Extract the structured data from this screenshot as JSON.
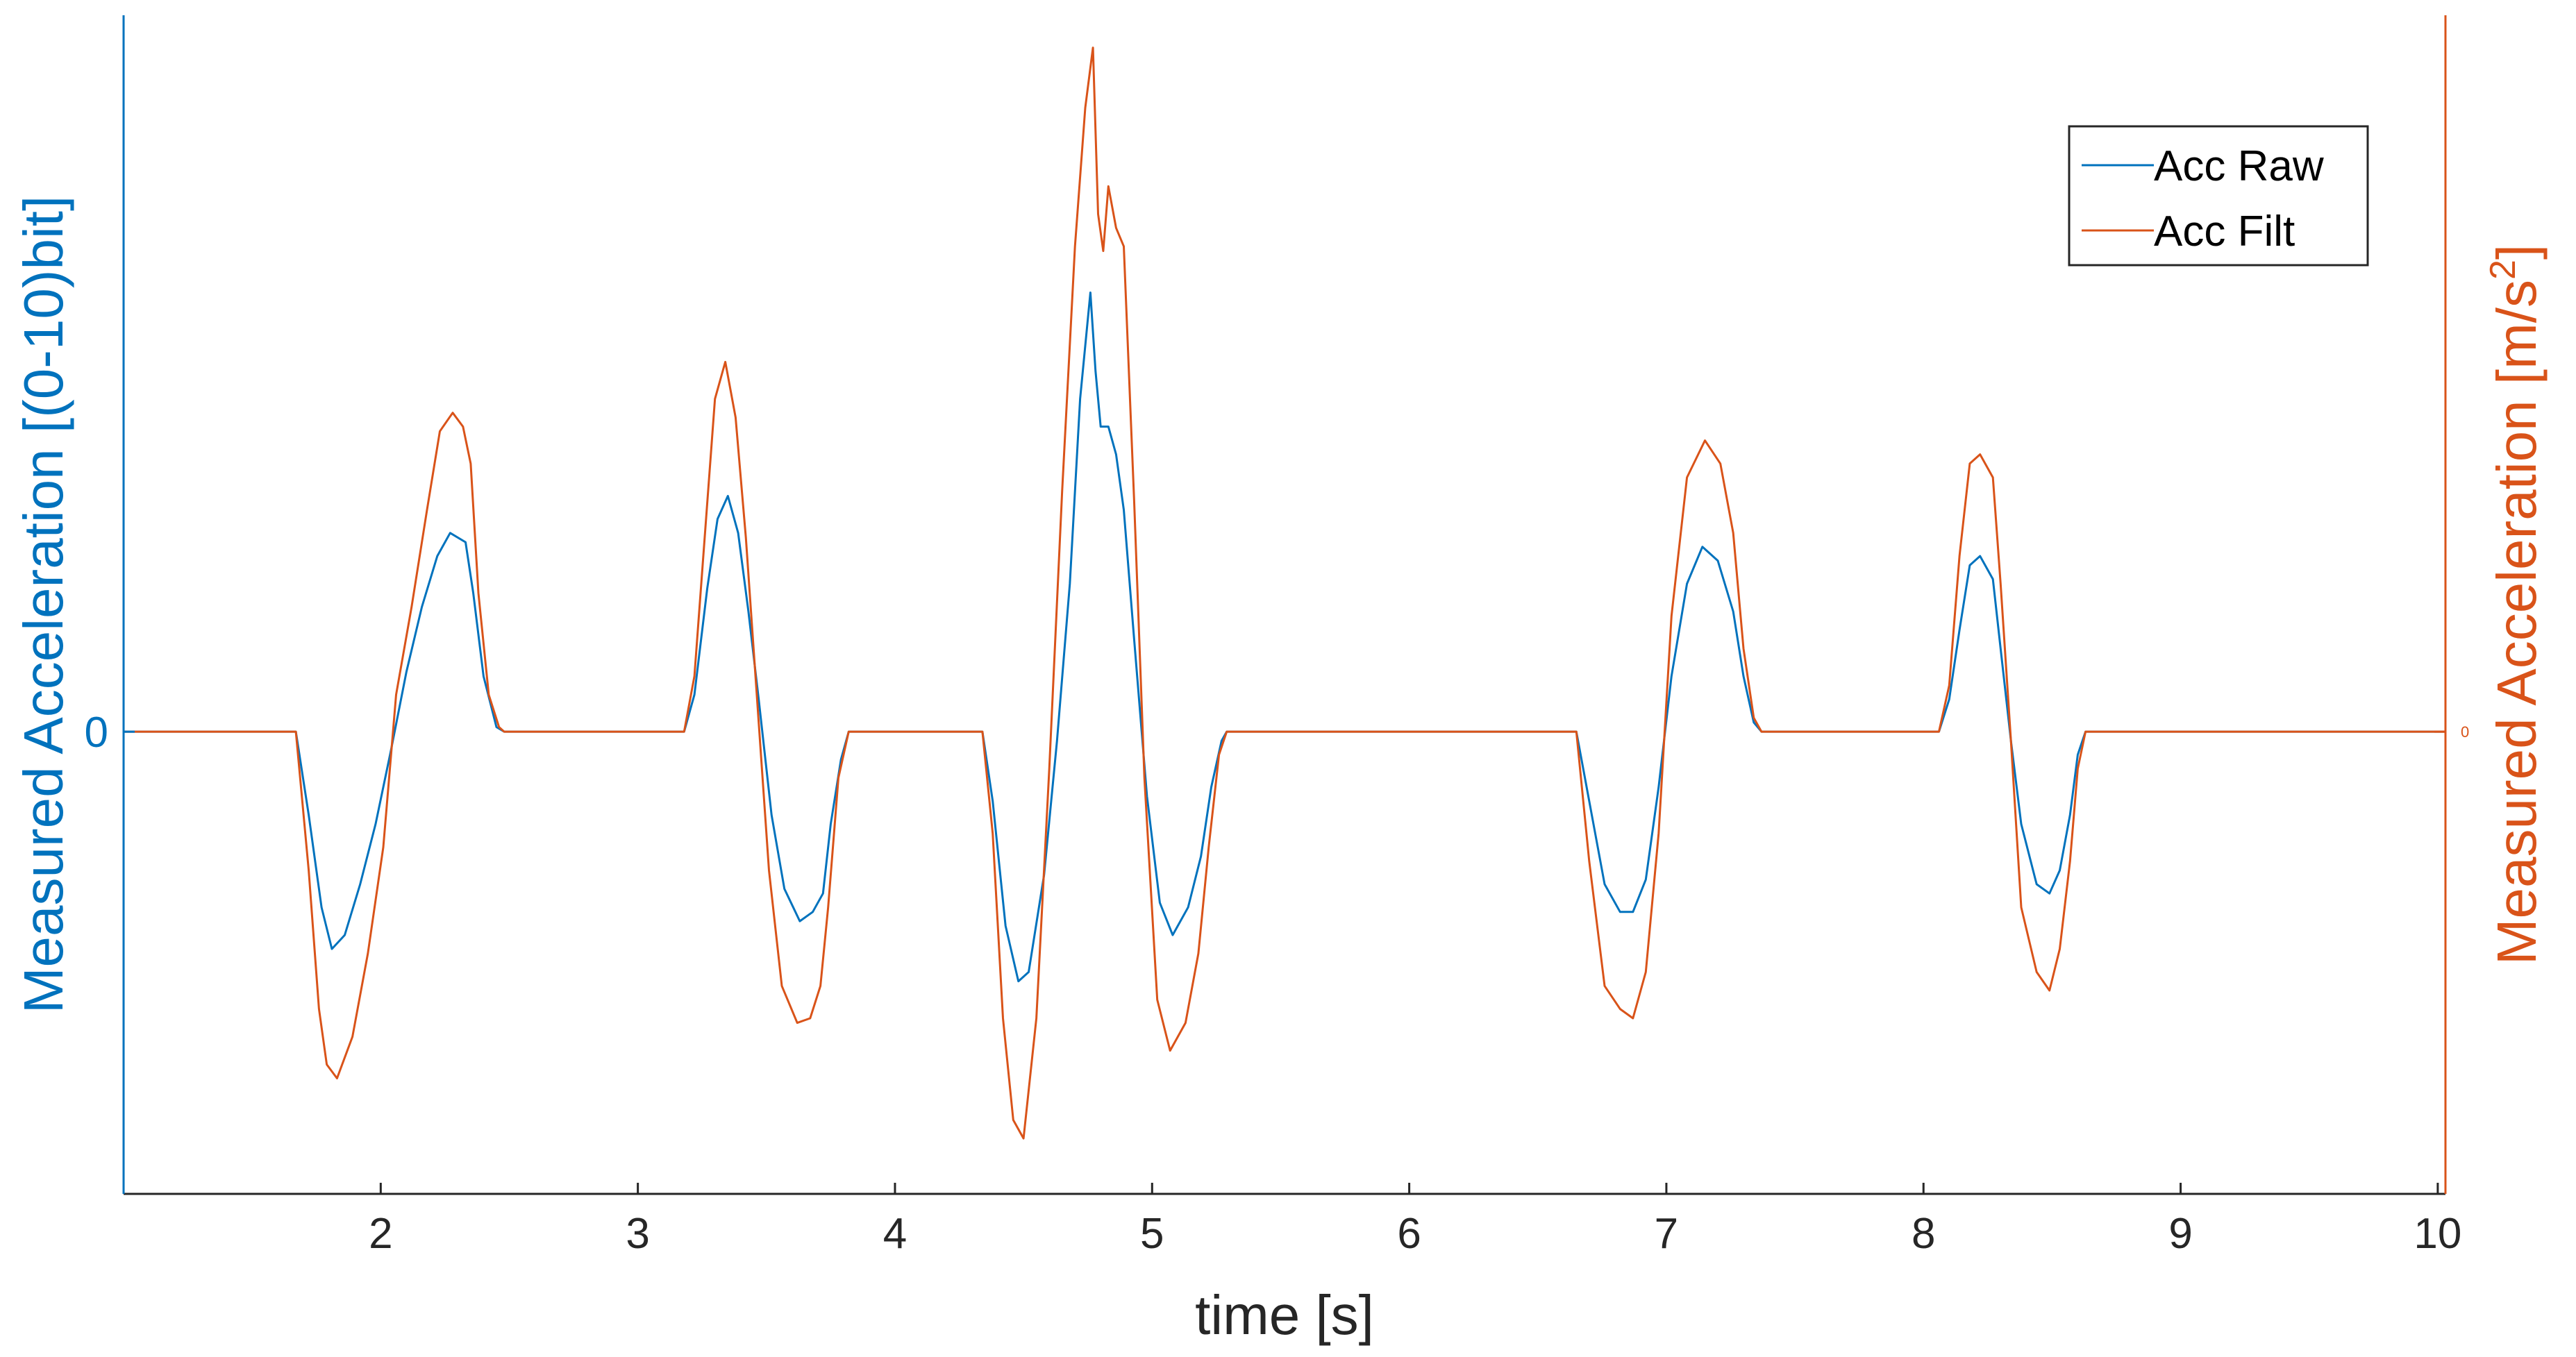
{
  "chart_data": {
    "type": "line",
    "xlabel": "time [s]",
    "ylabel_left": "Measured Acceleration [(0-10)bit]",
    "ylabel_right": "Measured Acceleration [m/s2]",
    "ylabel_right_main": "Measured Acceleration [m/s",
    "ylabel_right_sup": "2",
    "ylabel_right_close": "]",
    "xlim": [
      1,
      10.03
    ],
    "ylim": [
      -1,
      1.55
    ],
    "x_ticks": [
      "2",
      "3",
      "4",
      "5",
      "6",
      "7",
      "8",
      "9",
      "10"
    ],
    "y_left_ticks": [
      "0"
    ],
    "y_right_ticks": [
      "0"
    ],
    "grid": false,
    "legend_position": "top-right",
    "colors": {
      "raw": "#0072BD",
      "filt": "#D95319"
    },
    "series": [
      {
        "name": "Acc Raw",
        "color": "#0072BD",
        "points": [
          [
            1.0,
            0
          ],
          [
            1.67,
            0
          ],
          [
            1.72,
            -0.18
          ],
          [
            1.77,
            -0.38
          ],
          [
            1.81,
            -0.47
          ],
          [
            1.86,
            -0.44
          ],
          [
            1.92,
            -0.33
          ],
          [
            1.98,
            -0.2
          ],
          [
            2.04,
            -0.04
          ],
          [
            2.1,
            0.13
          ],
          [
            2.16,
            0.27
          ],
          [
            2.22,
            0.38
          ],
          [
            2.27,
            0.43
          ],
          [
            2.33,
            0.41
          ],
          [
            2.36,
            0.3
          ],
          [
            2.4,
            0.12
          ],
          [
            2.45,
            0.01
          ],
          [
            2.48,
            0
          ],
          [
            3.18,
            0
          ],
          [
            3.22,
            0.08
          ],
          [
            3.27,
            0.31
          ],
          [
            3.31,
            0.46
          ],
          [
            3.35,
            0.51
          ],
          [
            3.39,
            0.43
          ],
          [
            3.43,
            0.26
          ],
          [
            3.47,
            0.07
          ],
          [
            3.52,
            -0.18
          ],
          [
            3.57,
            -0.34
          ],
          [
            3.63,
            -0.41
          ],
          [
            3.68,
            -0.39
          ],
          [
            3.72,
            -0.35
          ],
          [
            3.75,
            -0.2
          ],
          [
            3.79,
            -0.06
          ],
          [
            3.82,
            0
          ],
          [
            4.34,
            0
          ],
          [
            4.38,
            -0.15
          ],
          [
            4.43,
            -0.42
          ],
          [
            4.48,
            -0.54
          ],
          [
            4.52,
            -0.52
          ],
          [
            4.58,
            -0.31
          ],
          [
            4.63,
            -0.02
          ],
          [
            4.68,
            0.32
          ],
          [
            4.72,
            0.72
          ],
          [
            4.76,
            0.95
          ],
          [
            4.78,
            0.78
          ],
          [
            4.8,
            0.66
          ],
          [
            4.83,
            0.66
          ],
          [
            4.86,
            0.6
          ],
          [
            4.89,
            0.48
          ],
          [
            4.93,
            0.2
          ],
          [
            4.98,
            -0.14
          ],
          [
            5.03,
            -0.37
          ],
          [
            5.08,
            -0.44
          ],
          [
            5.14,
            -0.38
          ],
          [
            5.19,
            -0.27
          ],
          [
            5.23,
            -0.12
          ],
          [
            5.27,
            -0.02
          ],
          [
            5.29,
            0
          ],
          [
            6.65,
            0
          ],
          [
            6.7,
            -0.15
          ],
          [
            6.76,
            -0.33
          ],
          [
            6.82,
            -0.39
          ],
          [
            6.87,
            -0.39
          ],
          [
            6.92,
            -0.32
          ],
          [
            6.97,
            -0.12
          ],
          [
            7.02,
            0.12
          ],
          [
            7.08,
            0.32
          ],
          [
            7.14,
            0.4
          ],
          [
            7.2,
            0.37
          ],
          [
            7.26,
            0.26
          ],
          [
            7.3,
            0.12
          ],
          [
            7.34,
            0.02
          ],
          [
            7.37,
            0
          ],
          [
            8.06,
            0
          ],
          [
            8.1,
            0.07
          ],
          [
            8.14,
            0.22
          ],
          [
            8.18,
            0.36
          ],
          [
            8.22,
            0.38
          ],
          [
            8.27,
            0.33
          ],
          [
            8.3,
            0.18
          ],
          [
            8.34,
            -0.02
          ],
          [
            8.38,
            -0.2
          ],
          [
            8.44,
            -0.33
          ],
          [
            8.49,
            -0.35
          ],
          [
            8.53,
            -0.3
          ],
          [
            8.57,
            -0.18
          ],
          [
            8.6,
            -0.05
          ],
          [
            8.63,
            0
          ],
          [
            10.03,
            0
          ]
        ]
      },
      {
        "name": "Acc Filt",
        "color": "#D95319",
        "points": [
          [
            1.0,
            0
          ],
          [
            1.67,
            0
          ],
          [
            1.72,
            -0.3
          ],
          [
            1.76,
            -0.6
          ],
          [
            1.79,
            -0.72
          ],
          [
            1.83,
            -0.75
          ],
          [
            1.89,
            -0.66
          ],
          [
            1.95,
            -0.48
          ],
          [
            2.01,
            -0.25
          ],
          [
            2.06,
            0.08
          ],
          [
            2.12,
            0.27
          ],
          [
            2.18,
            0.48
          ],
          [
            2.23,
            0.65
          ],
          [
            2.28,
            0.69
          ],
          [
            2.32,
            0.66
          ],
          [
            2.35,
            0.58
          ],
          [
            2.38,
            0.3
          ],
          [
            2.42,
            0.08
          ],
          [
            2.46,
            0.01
          ],
          [
            2.48,
            0
          ],
          [
            3.18,
            0
          ],
          [
            3.22,
            0.12
          ],
          [
            3.26,
            0.42
          ],
          [
            3.3,
            0.72
          ],
          [
            3.34,
            0.8
          ],
          [
            3.38,
            0.68
          ],
          [
            3.42,
            0.42
          ],
          [
            3.46,
            0.1
          ],
          [
            3.51,
            -0.3
          ],
          [
            3.56,
            -0.55
          ],
          [
            3.62,
            -0.63
          ],
          [
            3.67,
            -0.62
          ],
          [
            3.71,
            -0.55
          ],
          [
            3.74,
            -0.38
          ],
          [
            3.78,
            -0.1
          ],
          [
            3.82,
            0
          ],
          [
            4.34,
            0
          ],
          [
            4.38,
            -0.22
          ],
          [
            4.42,
            -0.62
          ],
          [
            4.46,
            -0.84
          ],
          [
            4.5,
            -0.88
          ],
          [
            4.55,
            -0.62
          ],
          [
            4.6,
            -0.08
          ],
          [
            4.65,
            0.52
          ],
          [
            4.7,
            1.05
          ],
          [
            4.74,
            1.35
          ],
          [
            4.77,
            1.48
          ],
          [
            4.79,
            1.12
          ],
          [
            4.81,
            1.04
          ],
          [
            4.83,
            1.18
          ],
          [
            4.86,
            1.09
          ],
          [
            4.89,
            1.05
          ],
          [
            4.93,
            0.5
          ],
          [
            4.97,
            -0.1
          ],
          [
            5.02,
            -0.58
          ],
          [
            5.07,
            -0.69
          ],
          [
            5.13,
            -0.63
          ],
          [
            5.18,
            -0.48
          ],
          [
            5.22,
            -0.25
          ],
          [
            5.26,
            -0.05
          ],
          [
            5.29,
            0
          ],
          [
            6.65,
            0
          ],
          [
            6.7,
            -0.28
          ],
          [
            6.76,
            -0.55
          ],
          [
            6.82,
            -0.6
          ],
          [
            6.87,
            -0.62
          ],
          [
            6.92,
            -0.52
          ],
          [
            6.97,
            -0.22
          ],
          [
            7.02,
            0.25
          ],
          [
            7.08,
            0.55
          ],
          [
            7.15,
            0.63
          ],
          [
            7.21,
            0.58
          ],
          [
            7.26,
            0.43
          ],
          [
            7.3,
            0.18
          ],
          [
            7.34,
            0.03
          ],
          [
            7.37,
            0
          ],
          [
            8.06,
            0
          ],
          [
            8.1,
            0.1
          ],
          [
            8.14,
            0.38
          ],
          [
            8.18,
            0.58
          ],
          [
            8.22,
            0.6
          ],
          [
            8.27,
            0.55
          ],
          [
            8.3,
            0.32
          ],
          [
            8.34,
            -0.02
          ],
          [
            8.38,
            -0.38
          ],
          [
            8.44,
            -0.52
          ],
          [
            8.49,
            -0.56
          ],
          [
            8.53,
            -0.47
          ],
          [
            8.57,
            -0.28
          ],
          [
            8.6,
            -0.08
          ],
          [
            8.63,
            0
          ],
          [
            10.03,
            0
          ]
        ]
      }
    ]
  }
}
